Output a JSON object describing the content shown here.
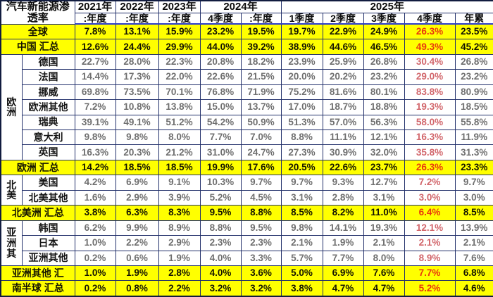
{
  "colors": {
    "highlight_yellow": "#ffff00",
    "grid_border": "#22306b",
    "header_underline_blue": "#2b3ccc",
    "red_on_white": "#d2666b",
    "red_on_yellow": "#e8380d",
    "value_gray": "#6f6f6f"
  },
  "header": {
    "title_lines": [
      "汽车新能源渗",
      "透率"
    ],
    "year_groups": [
      {
        "label": "2021年",
        "span": 1
      },
      {
        "label": "2022年",
        "span": 1
      },
      {
        "label": "2023年",
        "span": 1
      },
      {
        "label": "2024年",
        "span": 2
      },
      {
        "label": "2025年",
        "span": 5
      }
    ],
    "sub_headers": [
      ":年度",
      ":年度",
      ":年度",
      "4季度",
      ":年度",
      "1季度",
      "2季度",
      "3季度",
      "4季度",
      "年累"
    ]
  },
  "red_column_index": 8,
  "groups": [
    {
      "label": "欧洲",
      "start": 2,
      "span": 7
    },
    {
      "label": "北美",
      "start": 10,
      "span": 2
    },
    {
      "label": "亚洲其",
      "start": 13,
      "span": 3
    }
  ],
  "rows": [
    {
      "label": "全球",
      "style": "summary",
      "values": [
        "7.8%",
        "13.1%",
        "15.9%",
        "23.2%",
        "19.5%",
        "19.7%",
        "22.9%",
        "24.9%",
        "26.3%",
        "23.5%"
      ]
    },
    {
      "label": "中国 汇总",
      "style": "summary",
      "values": [
        "12.6%",
        "24.4%",
        "29.9%",
        "44.0%",
        "39.2%",
        "38.9%",
        "44.6%",
        "46.5%",
        "49.3%",
        "45.2%"
      ]
    },
    {
      "label": "德国",
      "style": "plain",
      "values": [
        "22.7%",
        "28.0%",
        "22.3%",
        "20.8%",
        "18.2%",
        "23.9%",
        "25.9%",
        "26.8%",
        "30.4%",
        "26.8%"
      ]
    },
    {
      "label": "法国",
      "style": "plain",
      "values": [
        "14.4%",
        "17.3%",
        "22.0%",
        "22.6%",
        "21.5%",
        "20.0%",
        "20.2%",
        "23.2%",
        "29.0%",
        "23.2%"
      ]
    },
    {
      "label": "挪威",
      "style": "plain",
      "values": [
        "69.8%",
        "73.5%",
        "70.1%",
        "76.8%",
        "71.9%",
        "75.2%",
        "81.6%",
        "80.1%",
        "83.8%",
        "80.9%"
      ]
    },
    {
      "label": "欧洲其他",
      "style": "plain",
      "values": [
        "7.2%",
        "10.8%",
        "13.8%",
        "15.0%",
        "13.7%",
        "17.0%",
        "18.7%",
        "18.8%",
        "19.3%",
        "18.5%"
      ]
    },
    {
      "label": "瑞典",
      "style": "plain",
      "values": [
        "39.1%",
        "49.1%",
        "51.2%",
        "54.2%",
        "50.9%",
        "51.3%",
        "57.0%",
        "56.3%",
        "58.0%",
        "55.8%"
      ]
    },
    {
      "label": "意大利",
      "style": "plain",
      "values": [
        "9.8%",
        "9.8%",
        "8.0%",
        "7.7%",
        "7.0%",
        "8.8%",
        "11.1%",
        "12.1%",
        "16.3%",
        "11.9%"
      ]
    },
    {
      "label": "英国",
      "style": "plain",
      "values": [
        "16.3%",
        "20.3%",
        "21.2%",
        "31.0%",
        "24.7%",
        "27.3%",
        "30.9%",
        "32.0%",
        "35.8%",
        "31.3%"
      ]
    },
    {
      "label": "欧洲 汇总",
      "style": "summary",
      "values": [
        "14.2%",
        "18.5%",
        "18.5%",
        "19.9%",
        "17.6%",
        "20.5%",
        "22.6%",
        "23.7%",
        "26.3%",
        "23.3%"
      ]
    },
    {
      "label": "美国",
      "style": "plain",
      "values": [
        "4.2%",
        "6.9%",
        "9.1%",
        "10.3%",
        "9.7%",
        "9.7%",
        "9.3%",
        "12.7%",
        "7.2%",
        "9.7%"
      ]
    },
    {
      "label": "北美其他",
      "style": "plain",
      "values": [
        "1.6%",
        "2.9%",
        "3.9%",
        "5.2%",
        "4.5%",
        "3.1%",
        "2.8%",
        "3.1%",
        "3.0%",
        "3.0%"
      ]
    },
    {
      "label": "北美洲 汇总",
      "style": "summary",
      "values": [
        "3.8%",
        "6.3%",
        "8.3%",
        "9.5%",
        "8.8%",
        "8.5%",
        "8.2%",
        "11.0%",
        "6.4%",
        "8.5%"
      ]
    },
    {
      "label": "韩国",
      "style": "plain",
      "values": [
        "6.2%",
        "9.9%",
        "8.9%",
        "8.8%",
        "9.5%",
        "9.8%",
        "14.1%",
        "19.3%",
        "12.1%",
        "13.9%"
      ]
    },
    {
      "label": "日本",
      "style": "plain",
      "values": [
        "1.0%",
        "2.2%",
        "2.9%",
        "2.3%",
        "2.3%",
        "2.1%",
        "1.9%",
        "2.1%",
        "2.1%",
        "2.1%"
      ]
    },
    {
      "label": "亚洲其他",
      "style": "plain",
      "values": [
        "0.2%",
        "0.6%",
        "1.9%",
        "4.0%",
        "3.3%",
        "5.7%",
        "7.7%",
        "8.0%",
        "8.9%",
        "7.6%"
      ]
    },
    {
      "label": "亚洲其他 汇",
      "style": "summary",
      "values": [
        "1.0%",
        "1.9%",
        "2.8%",
        "4.0%",
        "3.6%",
        "5.0%",
        "6.9%",
        "7.6%",
        "7.7%",
        "6.8%"
      ]
    },
    {
      "label": "南半球 汇总",
      "style": "summary",
      "values": [
        "0.2%",
        "0.8%",
        "2.2%",
        "3.2%",
        "3.2%",
        "3.8%",
        "4.7%",
        "4.7%",
        "5.2%",
        "4.6%"
      ]
    }
  ],
  "chart_data": {
    "type": "table",
    "title": "汽车新能源渗透率",
    "columns": [
      "2021年:年度",
      "2022年:年度",
      "2023年:年度",
      "2024年4季度",
      "2024年:年度",
      "2025年1季度",
      "2025年2季度",
      "2025年3季度",
      "2025年4季度",
      "2025年年累"
    ],
    "unit": "%"
  }
}
